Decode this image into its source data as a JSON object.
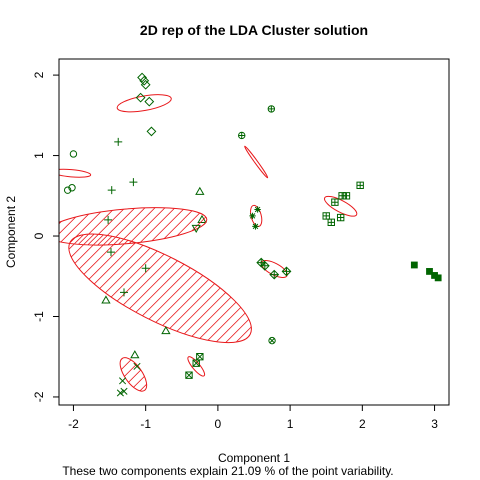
{
  "chart_data": {
    "type": "scatter",
    "title": "2D rep of the LDA Cluster solution",
    "xlabel": "Component 1",
    "ylabel": "Component 2",
    "subtitle": "These two components explain 21.09 % of the point variability.",
    "xlim": [
      -2.2,
      3.2
    ],
    "ylim": [
      -2.1,
      2.2
    ],
    "xticks": [
      -2,
      -1,
      0,
      1,
      2,
      3
    ],
    "yticks": [
      -2,
      -1,
      0,
      1,
      2
    ],
    "grid": false,
    "legend": "none",
    "colors": {
      "point": "#006400",
      "cluster": "#e8191c"
    },
    "clusters": [
      {
        "id": 1,
        "marker": "circle",
        "shade": false,
        "ellipse": {
          "cx": -2.03,
          "cy": 0.78,
          "rx": 0.05,
          "ry": 0.27,
          "angle": 85
        },
        "points": [
          [
            -2.0,
            1.02
          ],
          [
            -2.02,
            0.6
          ],
          [
            -2.08,
            0.57
          ]
        ]
      },
      {
        "id": 2,
        "marker": "triangle",
        "shade": true,
        "ellipse": {
          "cx": -0.8,
          "cy": -0.65,
          "rx": 0.45,
          "ry": 1.4,
          "angle": 63
        },
        "points": [
          [
            -0.25,
            0.55
          ],
          [
            -0.22,
            0.2
          ],
          [
            -0.72,
            -1.18
          ],
          [
            -1.15,
            -1.48
          ],
          [
            -1.55,
            -0.8
          ]
        ]
      },
      {
        "id": 3,
        "marker": "plus",
        "shade": true,
        "ellipse": {
          "cx": -1.27,
          "cy": 0.12,
          "rx": 0.24,
          "ry": 1.12,
          "angle": 95
        },
        "points": [
          [
            -1.38,
            1.17
          ],
          [
            -1.47,
            0.57
          ],
          [
            -1.17,
            0.67
          ],
          [
            -1.52,
            0.2
          ],
          [
            -1.48,
            -0.2
          ],
          [
            -1.0,
            -0.4
          ],
          [
            -1.3,
            -0.7
          ]
        ]
      },
      {
        "id": 4,
        "marker": "x",
        "shade": true,
        "ellipse": {
          "cx": -1.17,
          "cy": -1.72,
          "rx": 0.12,
          "ry": 0.27,
          "angle": 35
        },
        "points": [
          [
            -1.12,
            -1.62
          ],
          [
            -1.32,
            -1.8
          ],
          [
            -1.3,
            -1.93
          ],
          [
            -1.35,
            -1.95
          ]
        ]
      },
      {
        "id": 5,
        "marker": "diamond",
        "shade": false,
        "ellipse": {
          "cx": -1.02,
          "cy": 1.65,
          "rx": 0.1,
          "ry": 0.38,
          "angle": 100
        },
        "points": [
          [
            -1.05,
            1.97
          ],
          [
            -1.02,
            1.93
          ],
          [
            -1.0,
            1.88
          ],
          [
            -1.07,
            1.72
          ],
          [
            -0.95,
            1.67
          ],
          [
            -0.92,
            1.3
          ]
        ]
      },
      {
        "id": 6,
        "marker": "triangle-down",
        "shade": false,
        "ellipse": null,
        "points": [
          [
            -0.3,
            0.1
          ]
        ]
      },
      {
        "id": 7,
        "marker": "square-x",
        "shade": false,
        "ellipse": {
          "cx": -0.3,
          "cy": -1.62,
          "rx": 0.05,
          "ry": 0.17,
          "angle": 40
        },
        "points": [
          [
            -0.4,
            -1.73
          ],
          [
            -0.3,
            -1.58
          ],
          [
            -0.25,
            -1.5
          ]
        ]
      },
      {
        "id": 8,
        "marker": "circle-plus",
        "shade": false,
        "ellipse": {
          "cx": 0.53,
          "cy": 0.92,
          "rx": 0.02,
          "ry": 0.27,
          "angle": 36
        },
        "points": [
          [
            0.33,
            1.25
          ],
          [
            0.74,
            1.58
          ]
        ]
      },
      {
        "id": 9,
        "marker": "star",
        "shade": false,
        "ellipse": {
          "cx": 0.53,
          "cy": 0.25,
          "rx": 0.07,
          "ry": 0.15,
          "angle": 15
        },
        "points": [
          [
            0.48,
            0.25
          ],
          [
            0.55,
            0.33
          ],
          [
            0.52,
            0.12
          ]
        ]
      },
      {
        "id": 10,
        "marker": "diamond-plus",
        "shade": false,
        "ellipse": {
          "cx": 0.78,
          "cy": -0.41,
          "rx": 0.08,
          "ry": 0.2,
          "angle": 62
        },
        "points": [
          [
            0.6,
            -0.33
          ],
          [
            0.65,
            -0.37
          ],
          [
            0.78,
            -0.48
          ],
          [
            0.95,
            -0.44
          ]
        ]
      },
      {
        "id": 11,
        "marker": "circle-x",
        "shade": false,
        "ellipse": null,
        "points": [
          [
            0.75,
            -1.3
          ]
        ]
      },
      {
        "id": 12,
        "marker": "square-plus",
        "shade": false,
        "ellipse": {
          "cx": 1.7,
          "cy": 0.37,
          "rx": 0.08,
          "ry": 0.25,
          "angle": 62
        },
        "points": [
          [
            1.62,
            0.42
          ],
          [
            1.72,
            0.5
          ],
          [
            1.78,
            0.5
          ],
          [
            1.5,
            0.25
          ],
          [
            1.57,
            0.17
          ],
          [
            1.7,
            0.23
          ],
          [
            1.97,
            0.63
          ]
        ]
      },
      {
        "id": 13,
        "marker": "square-filled",
        "shade": false,
        "ellipse": null,
        "points": [
          [
            2.72,
            -0.36
          ],
          [
            2.93,
            -0.44
          ],
          [
            3.0,
            -0.49
          ],
          [
            3.05,
            -0.52
          ]
        ]
      }
    ]
  }
}
